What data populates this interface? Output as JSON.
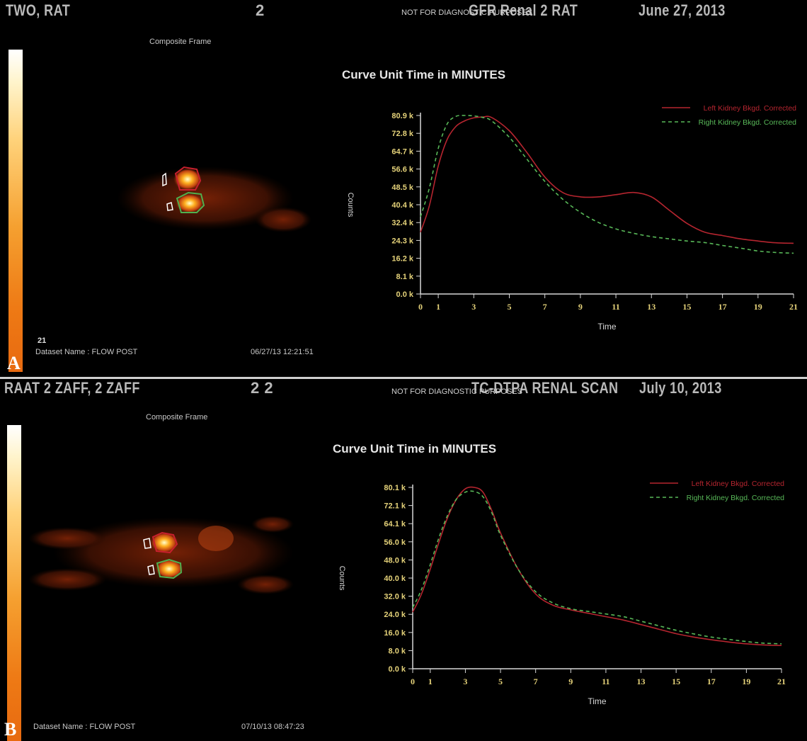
{
  "panels": [
    {
      "letter": "A",
      "header": {
        "patient": "TWO, RAT",
        "series": "2",
        "notice": "NOT FOR DIAGNOSTIC PURPOSES",
        "study": "GFR Renal 2 RAT",
        "date": "June 27, 2013"
      },
      "composite_label": "Composite Frame",
      "frame_number": "21",
      "dataset": "Dataset Name :  FLOW POST",
      "timestamp": "06/27/13 12:21:51",
      "colors": {
        "left": "#b5252f",
        "right": "#58b858",
        "axis": "#e6d37a"
      }
    },
    {
      "letter": "B",
      "header": {
        "patient": "RAAT 2 ZAFF, 2 ZAFF",
        "series": "2 2",
        "notice": "NOT FOR DIAGNOSTIC PURPOSES",
        "study": "TC-DTPA RENAL SCAN",
        "date": "July 10, 2013"
      },
      "composite_label": "Composite Frame",
      "frame_number": "",
      "dataset": "Dataset Name :  FLOW POST",
      "timestamp": "07/10/13 08:47:23",
      "colors": {
        "left": "#b5252f",
        "right": "#58b858",
        "axis": "#e6d37a"
      }
    }
  ],
  "chart_data": [
    {
      "type": "line",
      "title": "Curve Unit Time in MINUTES",
      "xlabel": "Time",
      "ylabel": "Counts",
      "xlim": [
        0,
        21
      ],
      "ylim": [
        0,
        80.9
      ],
      "x_ticks": [
        "0",
        "1",
        "3",
        "5",
        "7",
        "9",
        "11",
        "13",
        "15",
        "17",
        "19",
        "21"
      ],
      "y_ticks": [
        "0.0 k",
        "8.1 k",
        "16.2 k",
        "24.3 k",
        "32.4 k",
        "40.4 k",
        "48.5 k",
        "56.6 k",
        "64.7 k",
        "72.8 k",
        "80.9 k"
      ],
      "legend_position": "top-right",
      "series": [
        {
          "name": "Left Kidney Bkgd. Corrected",
          "style": "solid",
          "x": [
            0,
            0.5,
            1,
            1.5,
            2,
            2.5,
            3,
            3.5,
            4,
            5,
            6,
            7,
            8,
            9,
            10,
            11,
            12,
            13,
            14,
            15,
            16,
            17,
            18,
            19,
            20,
            21
          ],
          "y": [
            28,
            40,
            58,
            70,
            76,
            78.5,
            79.8,
            80.2,
            80,
            74,
            64,
            53,
            46,
            44,
            44,
            45,
            46,
            44,
            38,
            32,
            28,
            26.5,
            25,
            24,
            23.2,
            23
          ]
        },
        {
          "name": "Right Kidney Bkgd. Corrected",
          "style": "dashed",
          "x": [
            0,
            0.5,
            1,
            1.5,
            2,
            2.5,
            3,
            3.5,
            4,
            5,
            6,
            7,
            8,
            9,
            10,
            11,
            12,
            13,
            14,
            15,
            16,
            17,
            18,
            19,
            20,
            21
          ],
          "y": [
            35,
            48,
            66,
            77,
            80.5,
            80.9,
            80.7,
            80,
            78.5,
            71,
            61,
            51,
            43,
            37,
            32.5,
            29.5,
            27.5,
            26,
            25,
            24,
            23.3,
            22,
            20.8,
            19.5,
            18.8,
            18.5
          ]
        }
      ]
    },
    {
      "type": "line",
      "title": "Curve Unit Time in MINUTES",
      "xlabel": "Time",
      "ylabel": "Counts",
      "xlim": [
        0,
        21
      ],
      "ylim": [
        0,
        80.1
      ],
      "x_ticks": [
        "0",
        "1",
        "3",
        "5",
        "7",
        "9",
        "11",
        "13",
        "15",
        "17",
        "19",
        "21"
      ],
      "y_ticks": [
        "0.0 k",
        "8.0 k",
        "16.0 k",
        "24.0 k",
        "32.0 k",
        "40.0 k",
        "48.0 k",
        "56.0 k",
        "64.1 k",
        "72.1 k",
        "80.1 k"
      ],
      "legend_position": "top-right",
      "series": [
        {
          "name": "Left Kidney Bkgd. Corrected",
          "style": "solid",
          "x": [
            0,
            0.5,
            1,
            1.5,
            2,
            2.5,
            3,
            3.5,
            4,
            4.5,
            5,
            6,
            7,
            8,
            9,
            10,
            11,
            12,
            13,
            14,
            15,
            16,
            17,
            18,
            19,
            20,
            21
          ],
          "y": [
            25,
            33,
            44,
            56,
            67,
            75,
            79.5,
            80.1,
            78,
            70,
            60,
            44,
            33,
            28,
            26,
            24.5,
            23,
            21.5,
            19.5,
            17.5,
            15.5,
            14,
            12.8,
            11.8,
            11,
            10.5,
            10.3
          ]
        },
        {
          "name": "Right Kidney Bkgd. Corrected",
          "style": "dashed",
          "x": [
            0,
            0.5,
            1,
            1.5,
            2,
            2.5,
            3,
            3.5,
            4,
            4.5,
            5,
            6,
            7,
            8,
            9,
            10,
            11,
            12,
            13,
            14,
            15,
            16,
            17,
            18,
            19,
            20,
            21
          ],
          "y": [
            27,
            35,
            46,
            58,
            68,
            75,
            78,
            78.3,
            76,
            69,
            59,
            44,
            34,
            29,
            26.5,
            25.3,
            24.2,
            23,
            21,
            19,
            17,
            15.4,
            14,
            13,
            12,
            11.3,
            11
          ]
        }
      ]
    }
  ]
}
